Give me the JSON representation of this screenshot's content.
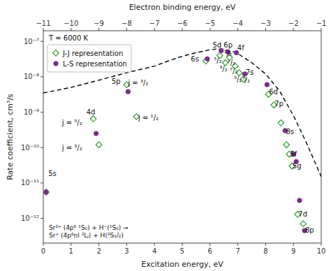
{
  "chart_data": {
    "type": "scatter",
    "xlabel": "Excitation energy, eV",
    "ylabel": "Rate coefficient, cm³/s",
    "x2label": "Electron binding energy, eV",
    "log": "y",
    "grid": false,
    "legend": "upper-left",
    "xlim": [
      0,
      10
    ],
    "xticks": [
      0,
      1,
      2,
      3,
      4,
      5,
      6,
      7,
      8,
      9,
      10
    ],
    "x2lim": [
      -11,
      -1
    ],
    "x2ticks": [
      {
        "value": -11,
        "label": "−11"
      },
      {
        "value": -10,
        "label": "−10"
      },
      {
        "value": -9,
        "label": "−9"
      },
      {
        "value": -8,
        "label": "−8"
      },
      {
        "value": -7,
        "label": "−7"
      },
      {
        "value": -6,
        "label": "−6"
      },
      {
        "value": -5,
        "label": "−5"
      },
      {
        "value": -4,
        "label": "−4"
      },
      {
        "value": -3,
        "label": "−3"
      },
      {
        "value": -2,
        "label": "−2"
      },
      {
        "value": -1,
        "label": "−1"
      }
    ],
    "ylim": [
      2e-13,
      2e-07
    ],
    "yticks": [
      {
        "value": 1e-12,
        "label": "10⁻¹²"
      },
      {
        "value": 1e-11,
        "label": "10⁻¹¹"
      },
      {
        "value": 1e-10,
        "label": "10⁻¹⁰"
      },
      {
        "value": 1e-09,
        "label": "10⁻⁹"
      },
      {
        "value": 1e-08,
        "label": "10⁻⁸"
      },
      {
        "value": 1e-07,
        "label": "10⁻⁷"
      }
    ],
    "series": [
      {
        "type": "line",
        "line_style": "dashed",
        "color": "#000000",
        "x": [
          0.0,
          1.0,
          2.0,
          3.0,
          4.0,
          4.5,
          5.0,
          5.5,
          6.0,
          6.3,
          6.5,
          6.8,
          7.0,
          7.5,
          8.0,
          8.5,
          9.0,
          9.5,
          10.0
        ],
        "values": [
          3.5e-09,
          5e-09,
          8e-09,
          1.3e-08,
          2e-08,
          2.8e-08,
          3.8e-08,
          4.8e-08,
          5.8e-08,
          6.2e-08,
          6e-08,
          5.2e-08,
          4.5e-08,
          2.5e-08,
          1.2e-08,
          4e-09,
          8e-10,
          1.2e-10,
          1.5e-11
        ]
      },
      {
        "type": "scatter",
        "name": "J-J representation",
        "marker": "diamond-open",
        "color": "#2ca02c",
        "x": [
          0.1,
          1.8,
          2.0,
          3.0,
          3.35,
          5.85,
          6.35,
          6.55,
          6.7,
          6.9,
          7.05,
          7.2,
          8.1,
          8.3,
          8.55,
          8.75,
          8.85,
          8.95,
          9.15,
          9.35
        ],
        "values": [
          5.5e-12,
          6.5e-10,
          1.2e-10,
          6e-09,
          7.5e-10,
          2.8e-08,
          4e-08,
          2.5e-08,
          3.5e-08,
          2e-08,
          1.3e-08,
          8.5e-09,
          3.2e-09,
          1.6e-09,
          5e-10,
          1.2e-10,
          6.5e-11,
          3e-11,
          1.3e-12,
          7e-13
        ]
      },
      {
        "type": "scatter",
        "name": "L-S representation",
        "marker": "circle",
        "color": "#7b2d8b",
        "x": [
          0.1,
          1.9,
          3.05,
          5.9,
          6.4,
          6.65,
          6.95,
          7.25,
          8.05,
          8.7,
          9.0,
          9.1,
          9.22,
          9.4
        ],
        "values": [
          5.5e-12,
          2.5e-10,
          3.8e-09,
          3.2e-08,
          5.5e-08,
          5e-08,
          4.8e-08,
          1.2e-08,
          6e-09,
          3e-10,
          6.5e-11,
          4e-11,
          3.2e-12,
          4.5e-13
        ]
      }
    ],
    "annotations": [
      {
        "text": "T = 6000 K"
      },
      {
        "text": "Sr²⁺ (4p⁶ ¹S₀) + H⁻(¹S₀) →\nSr⁺ (4p⁶nl ²Lⱼ) + H(²S₁/₂)"
      },
      {
        "text": "5s",
        "x": 0.18,
        "y": 2.2e-11
      },
      {
        "text": "4d",
        "x": 1.55,
        "y": 8.5e-10
      },
      {
        "text": "j = ⁵/₂",
        "x": 1.4,
        "y": 5e-10
      },
      {
        "text": "j = ³/₂",
        "x": 1.4,
        "y": 1e-10
      },
      {
        "text": "5p",
        "x": 2.78,
        "y": 7.5e-09
      },
      {
        "text": "j = ³/₂",
        "x": 3.05,
        "y": 6.8e-09
      },
      {
        "text": "j = ¹/₂",
        "x": 3.42,
        "y": 7e-10
      },
      {
        "text": "6s",
        "x": 5.6,
        "y": 3.2e-08
      },
      {
        "text": "5d  6p",
        "x": 6.45,
        "y": 8e-08
      },
      {
        "text": "⁵/₂",
        "x": 6.28,
        "y": 3.5e-08
      },
      {
        "text": "³/₂",
        "x": 6.48,
        "y": 2e-08
      },
      {
        "text": "¹/₂",
        "x": 6.63,
        "y": 2.5e-08
      },
      {
        "text": "³/₂",
        "x": 6.5,
        "y": 4.5e-08
      },
      {
        "text": "4f",
        "x": 6.98,
        "y": 6.5e-08
      },
      {
        "text": "⁷/₂",
        "x": 6.85,
        "y": 2.5e-08
      },
      {
        "text": "⁵/₂",
        "x": 7.0,
        "y": 1.2e-08
      },
      {
        "text": "⁷/₂",
        "x": 7.15,
        "y": 8e-09
      },
      {
        "text": "7s",
        "x": 7.28,
        "y": 1.1e-08
      },
      {
        "text": "6d",
        "x": 8.12,
        "y": 3.8e-09
      },
      {
        "text": "7p",
        "x": 8.32,
        "y": 1.7e-09
      },
      {
        "text": "5f",
        "x": 8.88,
        "y": 6.5e-11
      },
      {
        "text": "5g",
        "x": 8.97,
        "y": 3e-11
      },
      {
        "text": "8s",
        "x": 8.73,
        "y": 2.8e-10
      },
      {
        "text": "7d",
        "x": 9.18,
        "y": 1.3e-12
      },
      {
        "text": "8p",
        "x": 9.42,
        "y": 4e-13
      }
    ]
  }
}
